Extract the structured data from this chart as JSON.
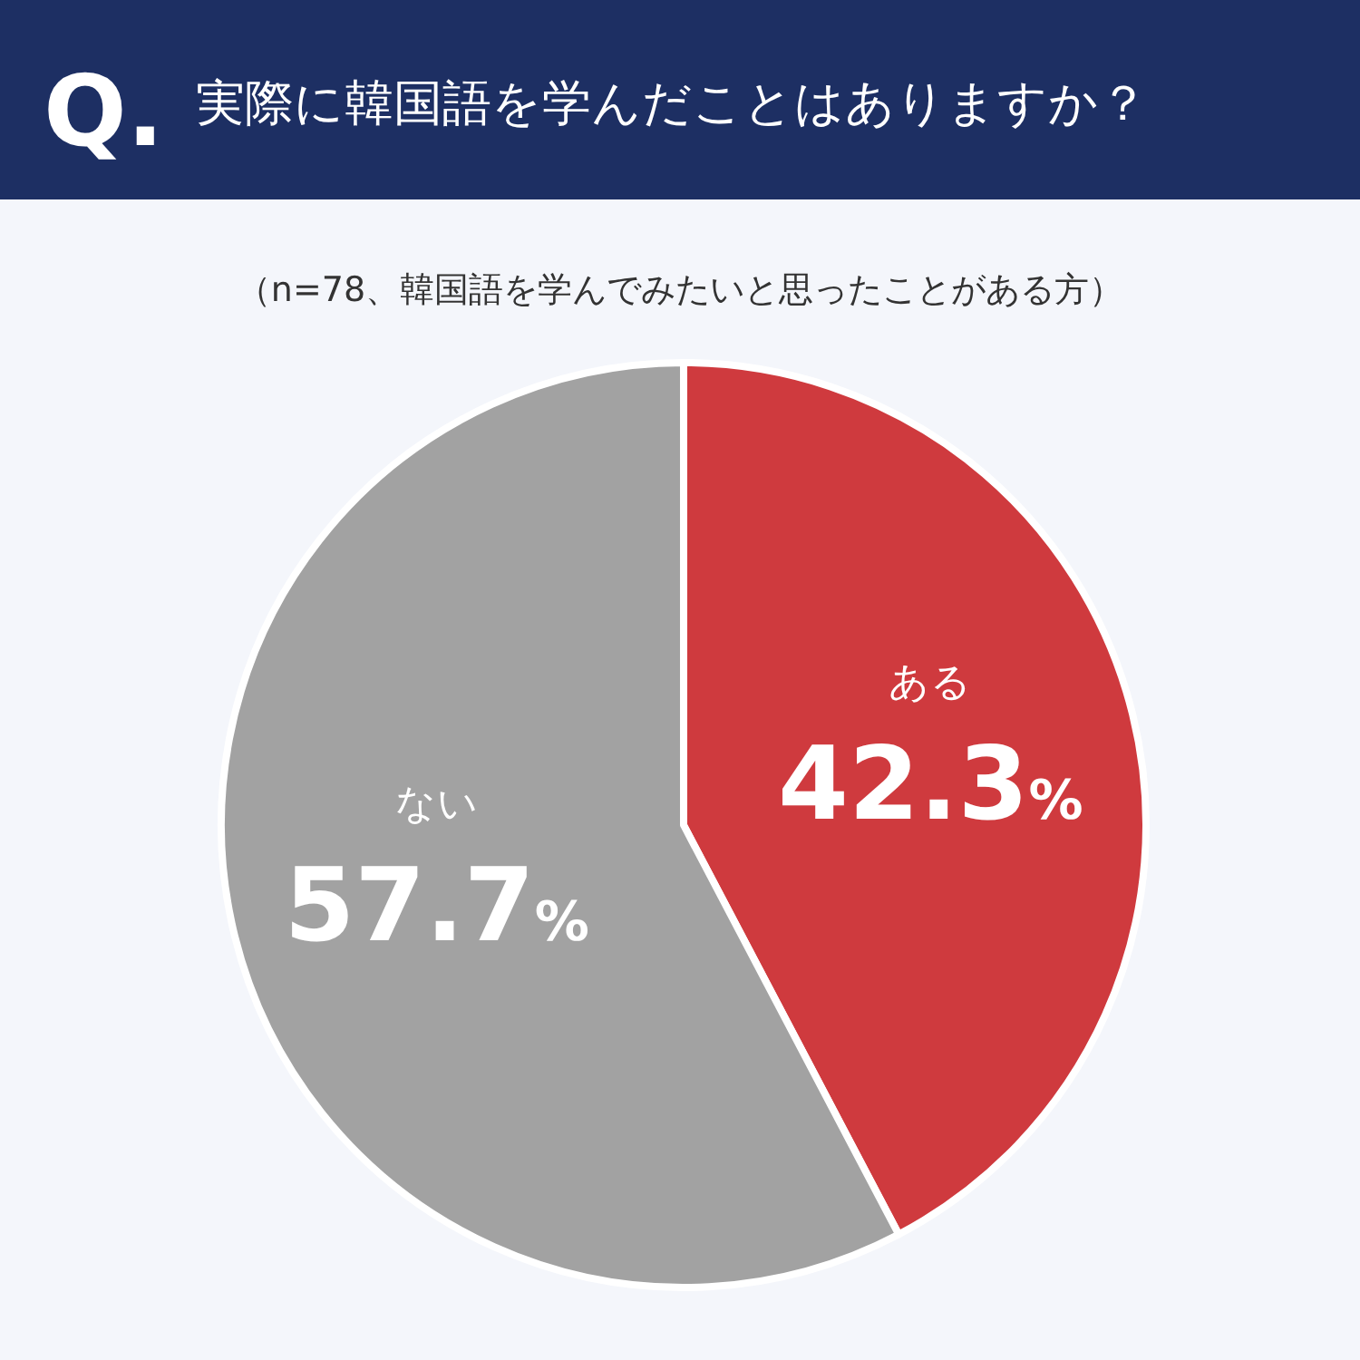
{
  "chart_data": {
    "type": "pie",
    "title": "Q. 実際に韓国語を学んだことはありますか？",
    "subtitle": "（n=78、韓国語を学んでみたいと思ったことがある方）",
    "categories": [
      "ある",
      "ない"
    ],
    "values": [
      42.3,
      57.7
    ],
    "colors": [
      "#cf3a3e",
      "#a2a2a2"
    ],
    "value_labels": [
      "42.3%",
      "57.7%"
    ]
  }
}
